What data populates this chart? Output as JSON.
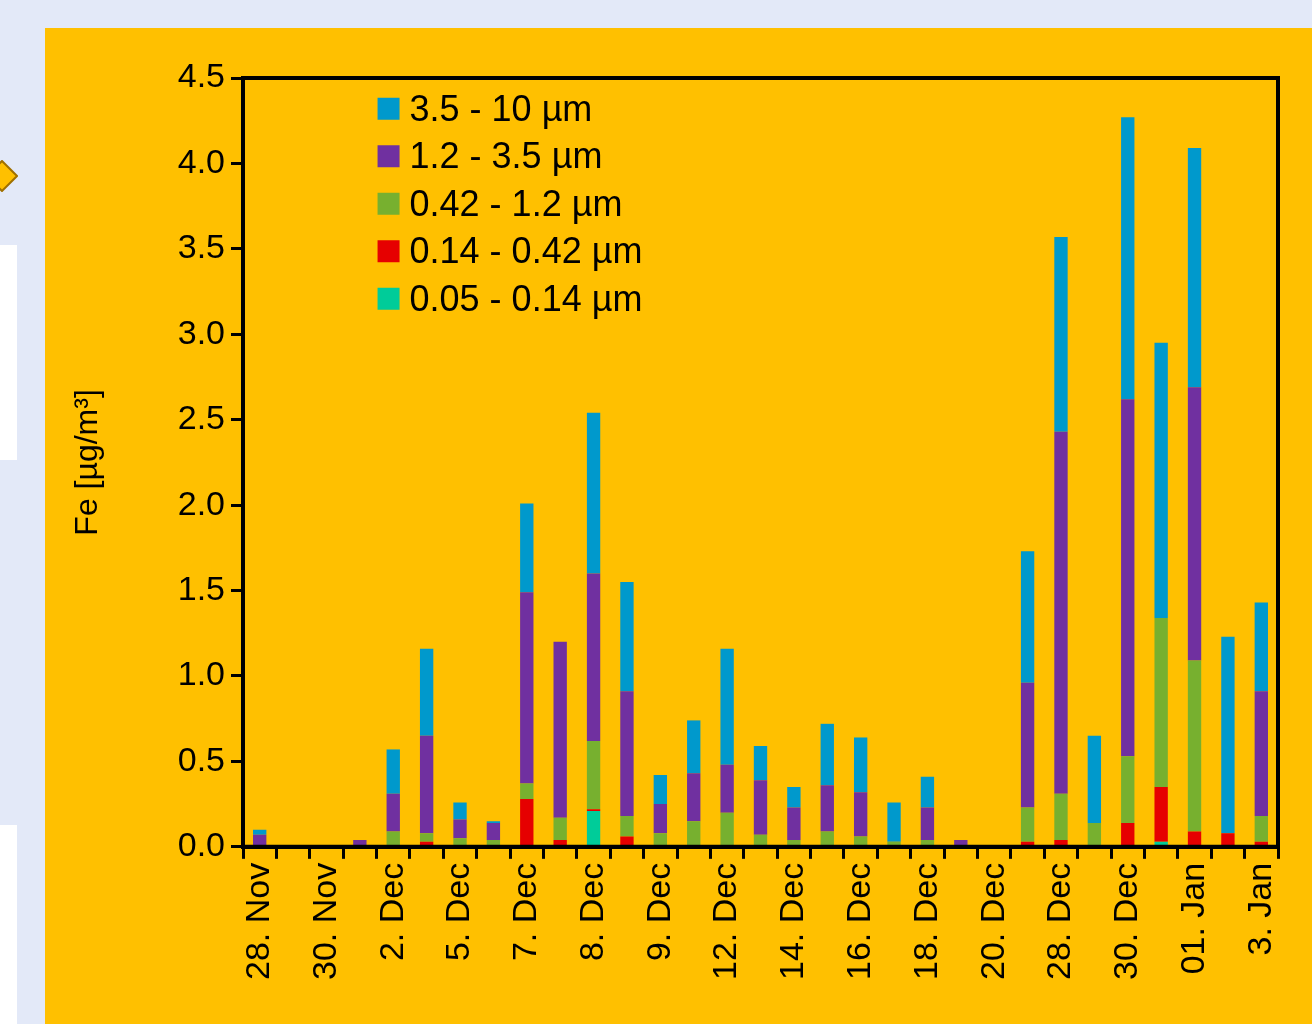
{
  "chart_data": {
    "type": "bar",
    "ylabel": "Fe [µg/m³]",
    "stacked": true,
    "legend": "top left",
    "grid": false,
    "categories": [
      "28. Nov",
      null,
      "30. Nov",
      null,
      "2. Dec",
      null,
      "5. Dec",
      null,
      "7. Dec",
      null,
      "8. Dec",
      null,
      "9. Dec",
      null,
      "12. Dec",
      null,
      "14. Dec",
      null,
      "16. Dec",
      null,
      "18. Dec",
      null,
      "20. Dec",
      null,
      "28. Dec",
      null,
      "30. Dec",
      null,
      "01. Jan",
      null,
      "3. Jan"
    ],
    "ylim": [
      0,
      4.5
    ],
    "yticks": [
      {
        "value": 0,
        "label": "0.0"
      },
      {
        "value": 0.5,
        "label": "0.5"
      },
      {
        "value": 1,
        "label": "1.0"
      },
      {
        "value": 1.5,
        "label": "1.5"
      },
      {
        "value": 2,
        "label": "2.0"
      },
      {
        "value": 2.5,
        "label": "2.5"
      },
      {
        "value": 3,
        "label": "3.0"
      },
      {
        "value": 3.5,
        "label": "3.5"
      },
      {
        "value": 4,
        "label": "4.0"
      },
      {
        "value": 4.5,
        "label": "4.5"
      }
    ],
    "series": [
      {
        "name": "0.05 - 0.14 µm",
        "color": "#00cc99",
        "values": [
          null,
          null,
          null,
          null,
          null,
          null,
          null,
          null,
          null,
          null,
          0.21,
          null,
          null,
          null,
          null,
          null,
          null,
          null,
          null,
          null,
          null,
          null,
          null,
          null,
          null,
          null,
          null,
          0.03,
          null,
          null,
          null
        ]
      },
      {
        "name": "0.14 - 0.42 µm",
        "color": "#e60000",
        "values": [
          null,
          null,
          null,
          null,
          null,
          0.03,
          null,
          null,
          0.28,
          0.04,
          0.01,
          0.06,
          null,
          null,
          null,
          null,
          null,
          null,
          null,
          null,
          null,
          null,
          null,
          0.03,
          0.04,
          null,
          0.14,
          0.32,
          0.09,
          0.08,
          0.03
        ]
      },
      {
        "name": "0.42 - 1.2 µm",
        "color": "#77b02f",
        "values": [
          null,
          null,
          null,
          null,
          0.09,
          0.05,
          0.05,
          0.04,
          0.09,
          0.13,
          0.4,
          0.12,
          0.08,
          0.15,
          0.2,
          0.07,
          0.04,
          0.09,
          0.06,
          0.03,
          0.04,
          null,
          null,
          0.2,
          0.27,
          0.14,
          0.39,
          0.99,
          1.0,
          null,
          0.15
        ]
      },
      {
        "name": "1.2 - 3.5 µm",
        "color": "#7030a0",
        "values": [
          0.07,
          null,
          null,
          0.04,
          0.22,
          0.57,
          0.11,
          0.1,
          1.12,
          1.03,
          0.98,
          0.73,
          0.17,
          0.28,
          0.28,
          0.32,
          0.19,
          0.27,
          0.26,
          null,
          0.19,
          0.04,
          null,
          0.73,
          2.12,
          null,
          2.09,
          null,
          1.6,
          null,
          0.73
        ]
      },
      {
        "name": "3.5 - 10 µm",
        "color": "#0099cc",
        "values": [
          0.03,
          null,
          null,
          null,
          0.26,
          0.51,
          0.1,
          0.01,
          0.52,
          null,
          0.94,
          0.64,
          0.17,
          0.31,
          0.68,
          0.2,
          0.12,
          0.36,
          0.32,
          0.23,
          0.18,
          null,
          null,
          0.77,
          1.14,
          0.51,
          1.65,
          1.61,
          1.4,
          1.15,
          0.52
        ]
      }
    ]
  }
}
